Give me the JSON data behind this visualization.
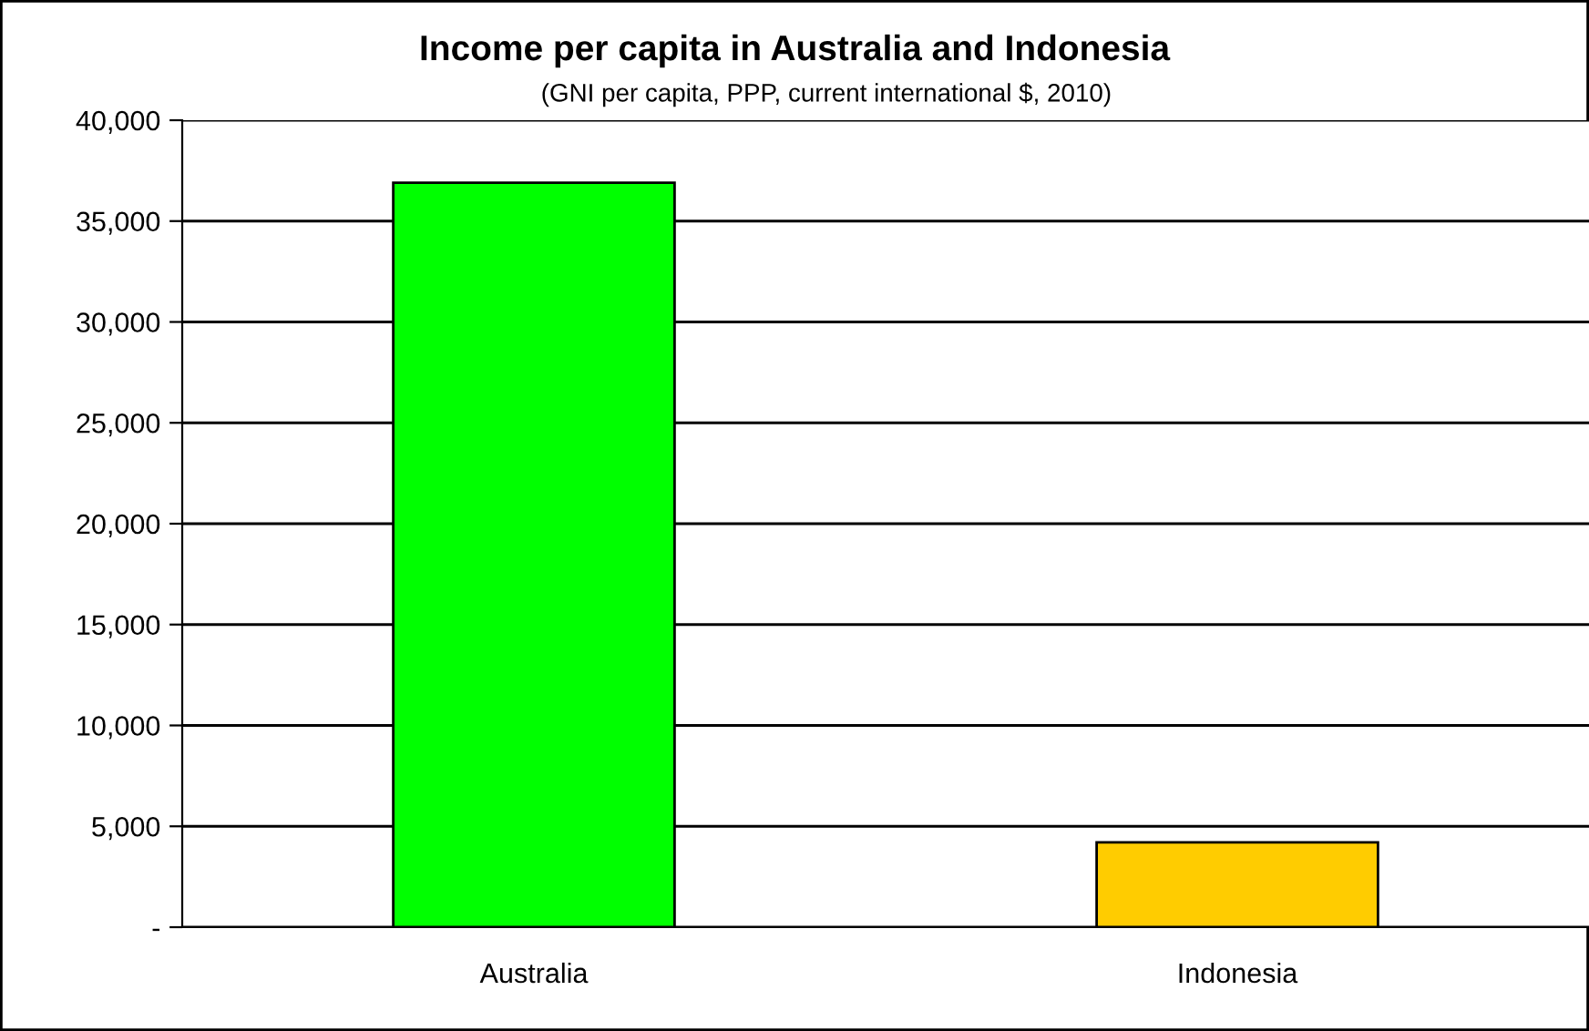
{
  "chart_data": {
    "type": "bar",
    "title": "Income per capita in Australia and Indonesia",
    "subtitle": "(GNI per capita, PPP, current international $, 2010)",
    "categories": [
      "Australia",
      "Indonesia"
    ],
    "values": [
      36900,
      4200
    ],
    "colors": [
      "#00ff00",
      "#ffcc00"
    ],
    "ylim": [
      0,
      40000
    ],
    "yticks": [
      {
        "value": 0,
        "label": "-"
      },
      {
        "value": 5000,
        "label": "5,000"
      },
      {
        "value": 10000,
        "label": "10,000"
      },
      {
        "value": 15000,
        "label": "15,000"
      },
      {
        "value": 20000,
        "label": "20,000"
      },
      {
        "value": 25000,
        "label": "25,000"
      },
      {
        "value": 30000,
        "label": "30,000"
      },
      {
        "value": 35000,
        "label": "35,000"
      },
      {
        "value": 40000,
        "label": "40,000"
      }
    ],
    "grid": "y",
    "legend": false
  }
}
